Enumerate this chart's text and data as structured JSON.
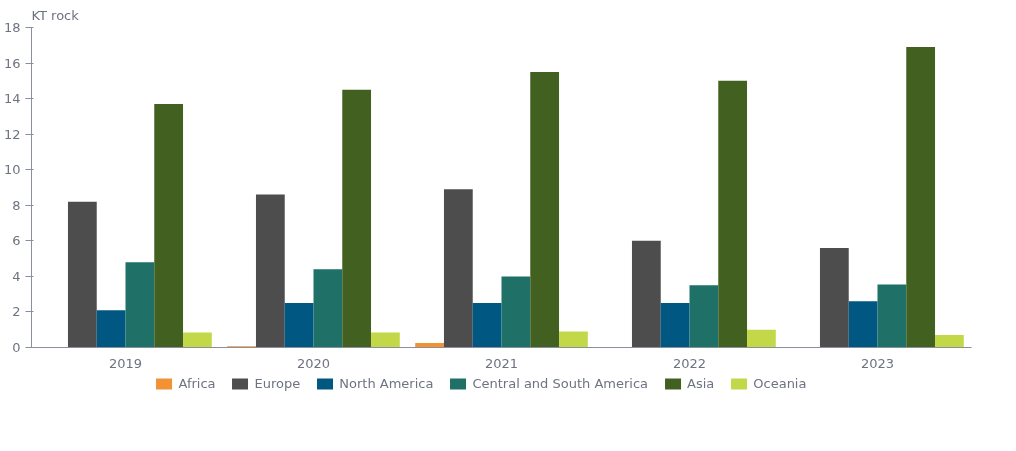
{
  "chart_data": {
    "type": "bar",
    "ylabel": "KT rock",
    "categories": [
      "2019",
      "2020",
      "2021",
      "2022",
      "2023"
    ],
    "ylim": [
      0,
      18
    ],
    "yticks": [
      0,
      2,
      4,
      6,
      8,
      10,
      12,
      14,
      16,
      18
    ],
    "grid": false,
    "legend": "bottom",
    "series": [
      {
        "name": "Africa",
        "color": "#f39232",
        "values": [
          0,
          0.07,
          0.25,
          0,
          0
        ]
      },
      {
        "name": "Europe",
        "color": "#4d4d4d",
        "values": [
          8.2,
          8.6,
          8.9,
          6.0,
          5.6
        ]
      },
      {
        "name": "North America",
        "color": "#005782",
        "values": [
          2.1,
          2.5,
          2.5,
          2.5,
          2.6
        ]
      },
      {
        "name": "Central and South America",
        "color": "#1f7066",
        "values": [
          4.8,
          4.4,
          4.0,
          3.5,
          3.55
        ]
      },
      {
        "name": "Asia",
        "color": "#426121",
        "values": [
          13.7,
          14.5,
          15.5,
          15.0,
          16.9
        ]
      },
      {
        "name": "Oceania",
        "color": "#c3d849",
        "values": [
          0.85,
          0.85,
          0.9,
          1.0,
          0.7
        ]
      }
    ]
  }
}
